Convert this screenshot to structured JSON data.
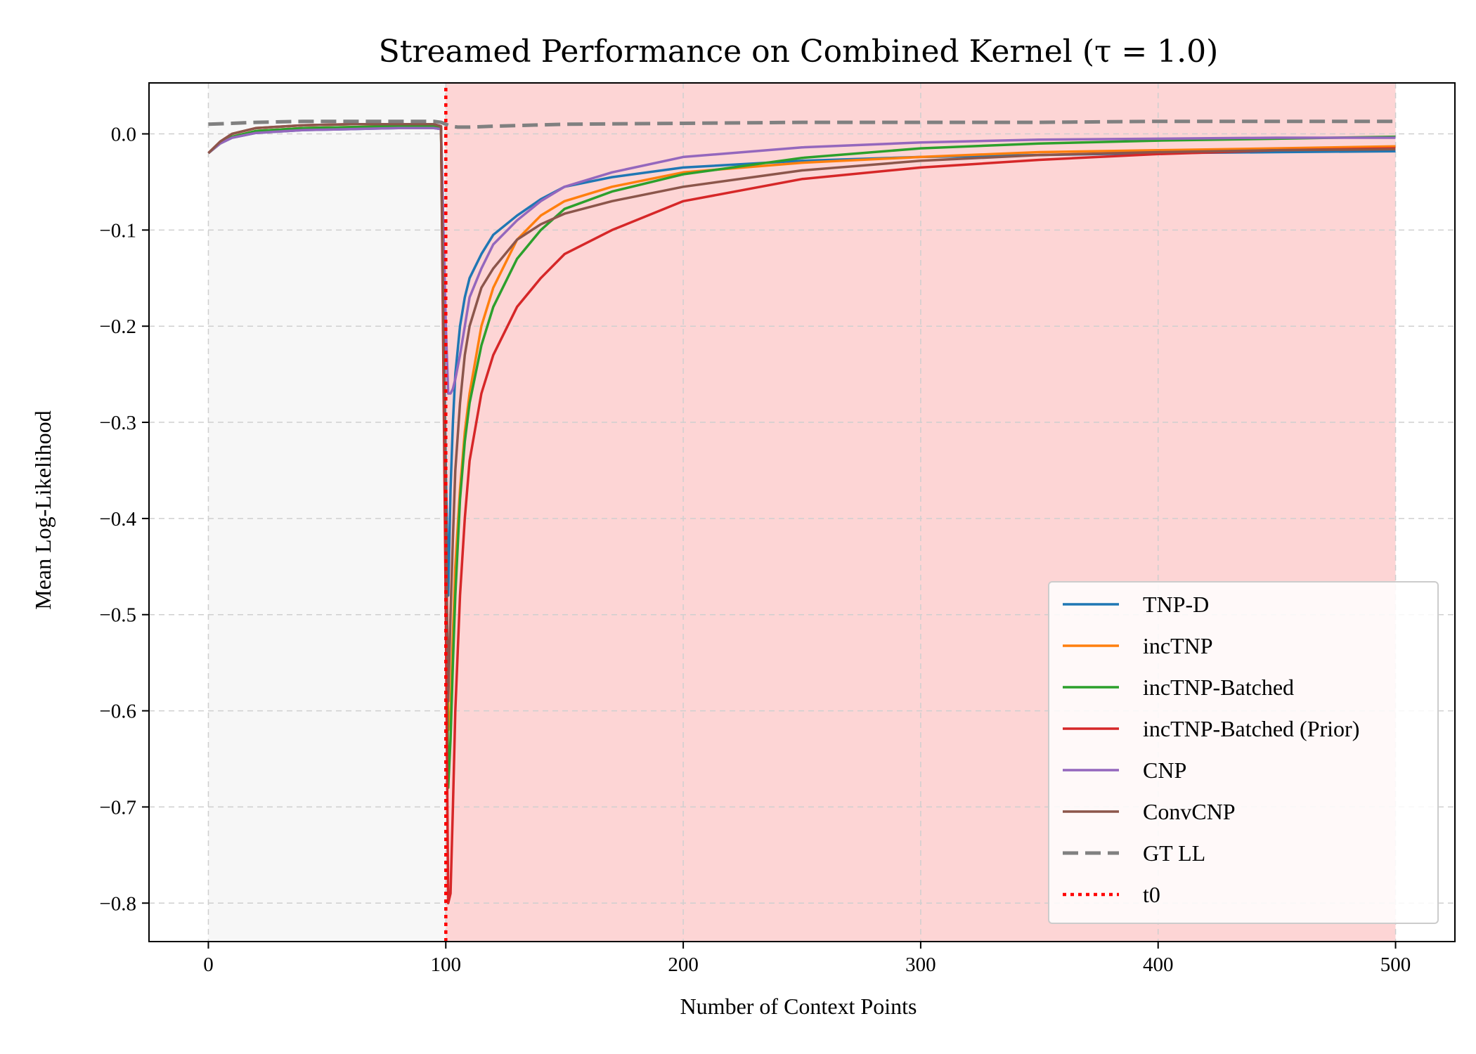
{
  "chart_data": {
    "type": "line",
    "title": "Streamed Performance on Combined Kernel (τ = 1.0)",
    "xlabel": "Number of Context Points",
    "ylabel": "Mean Log-Likelihood",
    "xlim": [
      -25,
      525
    ],
    "ylim": [
      -0.84,
      0.053
    ],
    "xticks": [
      0,
      100,
      200,
      300,
      400,
      500
    ],
    "yticks": [
      0.0,
      -0.1,
      -0.2,
      -0.3,
      -0.4,
      -0.5,
      -0.6,
      -0.7,
      -0.8
    ],
    "xtick_labels": [
      "0",
      "100",
      "200",
      "300",
      "400",
      "500"
    ],
    "ytick_labels": [
      "0.0",
      "−0.1",
      "−0.2",
      "−0.3",
      "−0.4",
      "−0.5",
      "−0.6",
      "−0.7",
      "−0.8"
    ],
    "grid": true,
    "legend_position": "lower-right",
    "shaded_regions": [
      {
        "x_start": 0,
        "x_end": 100,
        "color": "#f7f7f7"
      },
      {
        "x_start": 100,
        "x_end": 500,
        "color": "#fdd5d5"
      }
    ],
    "series": [
      {
        "name": "TNP-D",
        "color": "#1f77b4",
        "style": "solid",
        "x": [
          0,
          5,
          10,
          20,
          40,
          60,
          80,
          95,
          98,
          100,
          101,
          102,
          103,
          104,
          106,
          108,
          110,
          115,
          120,
          130,
          140,
          150,
          170,
          200,
          250,
          300,
          350,
          400,
          450,
          500
        ],
        "y": [
          -0.02,
          -0.01,
          -0.004,
          0.001,
          0.004,
          0.005,
          0.006,
          0.006,
          0.005,
          -0.35,
          -0.48,
          -0.37,
          -0.3,
          -0.25,
          -0.2,
          -0.17,
          -0.15,
          -0.125,
          -0.105,
          -0.085,
          -0.068,
          -0.055,
          -0.045,
          -0.035,
          -0.028,
          -0.024,
          -0.022,
          -0.02,
          -0.019,
          -0.018
        ]
      },
      {
        "name": "incTNP",
        "color": "#ff7f0e",
        "style": "solid",
        "x": [
          0,
          5,
          10,
          20,
          40,
          60,
          80,
          95,
          98,
          100,
          101,
          102,
          103,
          104,
          106,
          108,
          110,
          115,
          120,
          130,
          140,
          150,
          170,
          200,
          250,
          300,
          350,
          400,
          450,
          500
        ],
        "y": [
          -0.02,
          -0.01,
          -0.003,
          0.003,
          0.006,
          0.007,
          0.008,
          0.008,
          0.006,
          -0.4,
          -0.62,
          -0.6,
          -0.52,
          -0.45,
          -0.37,
          -0.31,
          -0.27,
          -0.2,
          -0.16,
          -0.11,
          -0.085,
          -0.07,
          -0.055,
          -0.04,
          -0.03,
          -0.024,
          -0.019,
          -0.017,
          -0.015,
          -0.013
        ]
      },
      {
        "name": "incTNP-Batched",
        "color": "#2ca02c",
        "style": "solid",
        "x": [
          0,
          5,
          10,
          20,
          40,
          60,
          80,
          95,
          98,
          100,
          101,
          102,
          103,
          104,
          106,
          108,
          110,
          115,
          120,
          130,
          140,
          150,
          170,
          200,
          250,
          300,
          350,
          400,
          450,
          500
        ],
        "y": [
          -0.02,
          -0.01,
          -0.003,
          0.003,
          0.006,
          0.007,
          0.008,
          0.008,
          0.006,
          -0.45,
          -0.68,
          -0.63,
          -0.55,
          -0.48,
          -0.38,
          -0.32,
          -0.28,
          -0.22,
          -0.18,
          -0.13,
          -0.1,
          -0.078,
          -0.06,
          -0.042,
          -0.025,
          -0.015,
          -0.01,
          -0.007,
          -0.005,
          -0.003
        ]
      },
      {
        "name": "incTNP-Batched (Prior)",
        "color": "#d62728",
        "style": "solid",
        "x": [
          0,
          5,
          10,
          20,
          40,
          60,
          80,
          95,
          98,
          100,
          101,
          102,
          103,
          104,
          106,
          108,
          110,
          115,
          120,
          130,
          140,
          150,
          170,
          200,
          250,
          300,
          350,
          400,
          450,
          500
        ],
        "y": [
          -0.02,
          -0.008,
          0.0,
          0.006,
          0.009,
          0.01,
          0.01,
          0.01,
          0.008,
          -0.5,
          -0.8,
          -0.79,
          -0.7,
          -0.6,
          -0.48,
          -0.4,
          -0.34,
          -0.27,
          -0.23,
          -0.18,
          -0.15,
          -0.125,
          -0.1,
          -0.07,
          -0.047,
          -0.035,
          -0.027,
          -0.021,
          -0.017,
          -0.015
        ]
      },
      {
        "name": "CNP",
        "color": "#9467bd",
        "style": "solid",
        "x": [
          0,
          5,
          10,
          20,
          40,
          60,
          80,
          95,
          98,
          100,
          101,
          102,
          103,
          104,
          106,
          108,
          110,
          115,
          120,
          130,
          140,
          150,
          170,
          200,
          250,
          300,
          350,
          400,
          450,
          500
        ],
        "y": [
          -0.02,
          -0.01,
          -0.004,
          0.001,
          0.004,
          0.005,
          0.006,
          0.006,
          0.005,
          -0.2,
          -0.27,
          -0.27,
          -0.265,
          -0.255,
          -0.23,
          -0.2,
          -0.17,
          -0.14,
          -0.115,
          -0.09,
          -0.07,
          -0.055,
          -0.04,
          -0.024,
          -0.014,
          -0.009,
          -0.006,
          -0.005,
          -0.004,
          -0.004
        ]
      },
      {
        "name": "ConvCNP",
        "color": "#8c564b",
        "style": "solid",
        "x": [
          0,
          5,
          10,
          20,
          40,
          60,
          80,
          95,
          98,
          100,
          101,
          102,
          103,
          104,
          106,
          108,
          110,
          115,
          120,
          130,
          140,
          150,
          170,
          200,
          250,
          300,
          350,
          400,
          450,
          500
        ],
        "y": [
          -0.02,
          -0.008,
          0.0,
          0.006,
          0.009,
          0.01,
          0.01,
          0.01,
          0.008,
          -0.4,
          -0.59,
          -0.5,
          -0.42,
          -0.35,
          -0.28,
          -0.23,
          -0.2,
          -0.16,
          -0.14,
          -0.11,
          -0.094,
          -0.083,
          -0.07,
          -0.055,
          -0.038,
          -0.028,
          -0.022,
          -0.019,
          -0.017,
          -0.016
        ]
      },
      {
        "name": "GT LL",
        "color": "#808080",
        "style": "dashed",
        "x": [
          0,
          10,
          20,
          40,
          60,
          80,
          95,
          98,
          100,
          102,
          105,
          110,
          120,
          150,
          200,
          250,
          300,
          350,
          400,
          450,
          500
        ],
        "y": [
          0.01,
          0.011,
          0.012,
          0.013,
          0.013,
          0.013,
          0.013,
          0.012,
          0.01,
          0.008,
          0.007,
          0.007,
          0.008,
          0.01,
          0.011,
          0.012,
          0.012,
          0.012,
          0.013,
          0.013,
          0.013
        ]
      },
      {
        "name": "t0",
        "color": "#ff0000",
        "style": "dotted",
        "x": [
          100,
          100
        ],
        "y": [
          -0.84,
          0.053
        ]
      }
    ]
  }
}
